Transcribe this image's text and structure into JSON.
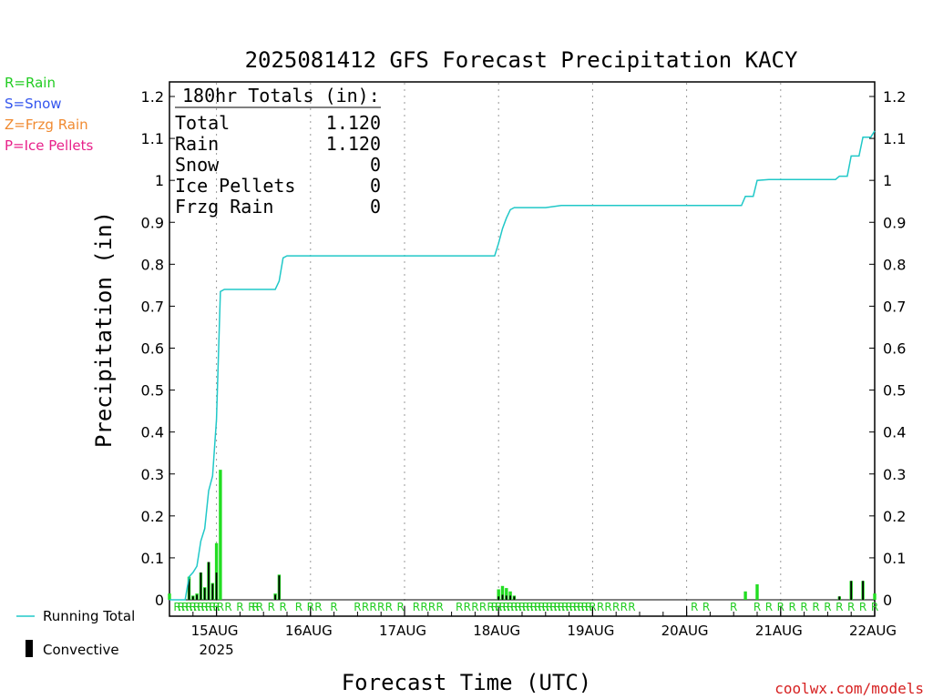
{
  "chart_data": {
    "type": "bar",
    "title": "2025081412 GFS Forecast Precipitation KACY",
    "xlabel": "Forecast Time (UTC)",
    "ylabel": "Precipitation (in)",
    "ylim": [
      0,
      1.2
    ],
    "y_ticks": [
      "0",
      "0.1",
      "0.2",
      "0.3",
      "0.4",
      "0.5",
      "0.6",
      "0.7",
      "0.8",
      "0.9",
      "1",
      "1.1",
      "1.2"
    ],
    "x_hours_range": [
      0,
      180
    ],
    "x_ticks": [
      {
        "hour": 12,
        "label": "15AUG",
        "sublabel": "2025"
      },
      {
        "hour": 36,
        "label": "16AUG"
      },
      {
        "hour": 60,
        "label": "17AUG"
      },
      {
        "hour": 84,
        "label": "18AUG"
      },
      {
        "hour": 108,
        "label": "19AUG"
      },
      {
        "hour": 132,
        "label": "20AUG"
      },
      {
        "hour": 156,
        "label": "21AUG"
      },
      {
        "hour": 180,
        "label": "22AUG"
      }
    ],
    "grid_hours": [
      12,
      36,
      60,
      84,
      108,
      132,
      156
    ],
    "totals_box": {
      "header": "180hr Totals (in):",
      "rows": [
        {
          "label": "Total",
          "value": "1.120"
        },
        {
          "label": "Rain",
          "value": "1.120"
        },
        {
          "label": "Snow",
          "value": "0"
        },
        {
          "label": "Ice Pellets",
          "value": "0"
        },
        {
          "label": "Frzg Rain",
          "value": "0"
        }
      ]
    },
    "type_legend": [
      {
        "text": "R=Rain",
        "color": "#22cc22"
      },
      {
        "text": "S=Snow",
        "color": "#3355ee"
      },
      {
        "text": "Z=Frzg Rain",
        "color": "#f08a30"
      },
      {
        "text": "P=Ice Pellets",
        "color": "#e8208a"
      }
    ],
    "series_legend": [
      {
        "name": "Running Total",
        "color": "#20c8c8"
      },
      {
        "name": "Convective",
        "color": "#000000"
      }
    ],
    "precip_bars": [
      {
        "hour": 0,
        "value": 0.015
      },
      {
        "hour": 5,
        "value": 0.055
      },
      {
        "hour": 6,
        "value": 0.01
      },
      {
        "hour": 7,
        "value": 0.015
      },
      {
        "hour": 8,
        "value": 0.065
      },
      {
        "hour": 9,
        "value": 0.03
      },
      {
        "hour": 10,
        "value": 0.09
      },
      {
        "hour": 11,
        "value": 0.04
      },
      {
        "hour": 12,
        "value": 0.135
      },
      {
        "hour": 13,
        "value": 0.31
      },
      {
        "hour": 27,
        "value": 0.015
      },
      {
        "hour": 28,
        "value": 0.06
      },
      {
        "hour": 84,
        "value": 0.025
      },
      {
        "hour": 85,
        "value": 0.033
      },
      {
        "hour": 86,
        "value": 0.028
      },
      {
        "hour": 87,
        "value": 0.02
      },
      {
        "hour": 88,
        "value": 0.01
      },
      {
        "hour": 147,
        "value": 0.02
      },
      {
        "hour": 150,
        "value": 0.037
      },
      {
        "hour": 171,
        "value": 0.008
      },
      {
        "hour": 174,
        "value": 0.045
      },
      {
        "hour": 177,
        "value": 0.045
      },
      {
        "hour": 180,
        "value": 0.015
      }
    ],
    "convective_bars": [
      {
        "hour": 5,
        "value": 0.05
      },
      {
        "hour": 6,
        "value": 0.008
      },
      {
        "hour": 7,
        "value": 0.012
      },
      {
        "hour": 8,
        "value": 0.065
      },
      {
        "hour": 9,
        "value": 0.028
      },
      {
        "hour": 10,
        "value": 0.09
      },
      {
        "hour": 11,
        "value": 0.038
      },
      {
        "hour": 12,
        "value": 0.065
      },
      {
        "hour": 27,
        "value": 0.012
      },
      {
        "hour": 28,
        "value": 0.058
      },
      {
        "hour": 84,
        "value": 0.008
      },
      {
        "hour": 85,
        "value": 0.012
      },
      {
        "hour": 86,
        "value": 0.01
      },
      {
        "hour": 87,
        "value": 0.01
      },
      {
        "hour": 88,
        "value": 0.008
      },
      {
        "hour": 171,
        "value": 0.008
      },
      {
        "hour": 174,
        "value": 0.045
      },
      {
        "hour": 177,
        "value": 0.045
      }
    ],
    "running_total": [
      {
        "hour": 0,
        "value": 0.0
      },
      {
        "hour": 4,
        "value": 0.0
      },
      {
        "hour": 5,
        "value": 0.055
      },
      {
        "hour": 6,
        "value": 0.065
      },
      {
        "hour": 7,
        "value": 0.08
      },
      {
        "hour": 8,
        "value": 0.14
      },
      {
        "hour": 9,
        "value": 0.17
      },
      {
        "hour": 10,
        "value": 0.26
      },
      {
        "hour": 11,
        "value": 0.295
      },
      {
        "hour": 12,
        "value": 0.43
      },
      {
        "hour": 13,
        "value": 0.735
      },
      {
        "hour": 14,
        "value": 0.74
      },
      {
        "hour": 27,
        "value": 0.74
      },
      {
        "hour": 28,
        "value": 0.76
      },
      {
        "hour": 29,
        "value": 0.815
      },
      {
        "hour": 30,
        "value": 0.82
      },
      {
        "hour": 83,
        "value": 0.82
      },
      {
        "hour": 84,
        "value": 0.85
      },
      {
        "hour": 85,
        "value": 0.885
      },
      {
        "hour": 86,
        "value": 0.91
      },
      {
        "hour": 87,
        "value": 0.93
      },
      {
        "hour": 88,
        "value": 0.935
      },
      {
        "hour": 96,
        "value": 0.935
      },
      {
        "hour": 100,
        "value": 0.94
      },
      {
        "hour": 146,
        "value": 0.94
      },
      {
        "hour": 147,
        "value": 0.962
      },
      {
        "hour": 149,
        "value": 0.962
      },
      {
        "hour": 150,
        "value": 1.0
      },
      {
        "hour": 153,
        "value": 1.002
      },
      {
        "hour": 170,
        "value": 1.002
      },
      {
        "hour": 171,
        "value": 1.01
      },
      {
        "hour": 173,
        "value": 1.01
      },
      {
        "hour": 174,
        "value": 1.058
      },
      {
        "hour": 176,
        "value": 1.058
      },
      {
        "hour": 177,
        "value": 1.103
      },
      {
        "hour": 179,
        "value": 1.103
      },
      {
        "hour": 180,
        "value": 1.118
      }
    ],
    "precip_type_markers": {
      "letter": "R",
      "hours": [
        2,
        3,
        4,
        5,
        6,
        7,
        8,
        9,
        10,
        11,
        12,
        13,
        15,
        18,
        21,
        22,
        23,
        26,
        29,
        33,
        36,
        38,
        42,
        48,
        50,
        52,
        54,
        56,
        59,
        63,
        65,
        67,
        69,
        74,
        76,
        78,
        80,
        82,
        83,
        84,
        85,
        86,
        87,
        88,
        89,
        90,
        91,
        92,
        93,
        94,
        95,
        96,
        97,
        98,
        99,
        100,
        101,
        102,
        103,
        104,
        105,
        106,
        107,
        108,
        110,
        112,
        114,
        116,
        118,
        134,
        137,
        144,
        150,
        153,
        156,
        159,
        162,
        165,
        168,
        171,
        174,
        177,
        180
      ]
    },
    "credit": "coolwx.com/models"
  }
}
